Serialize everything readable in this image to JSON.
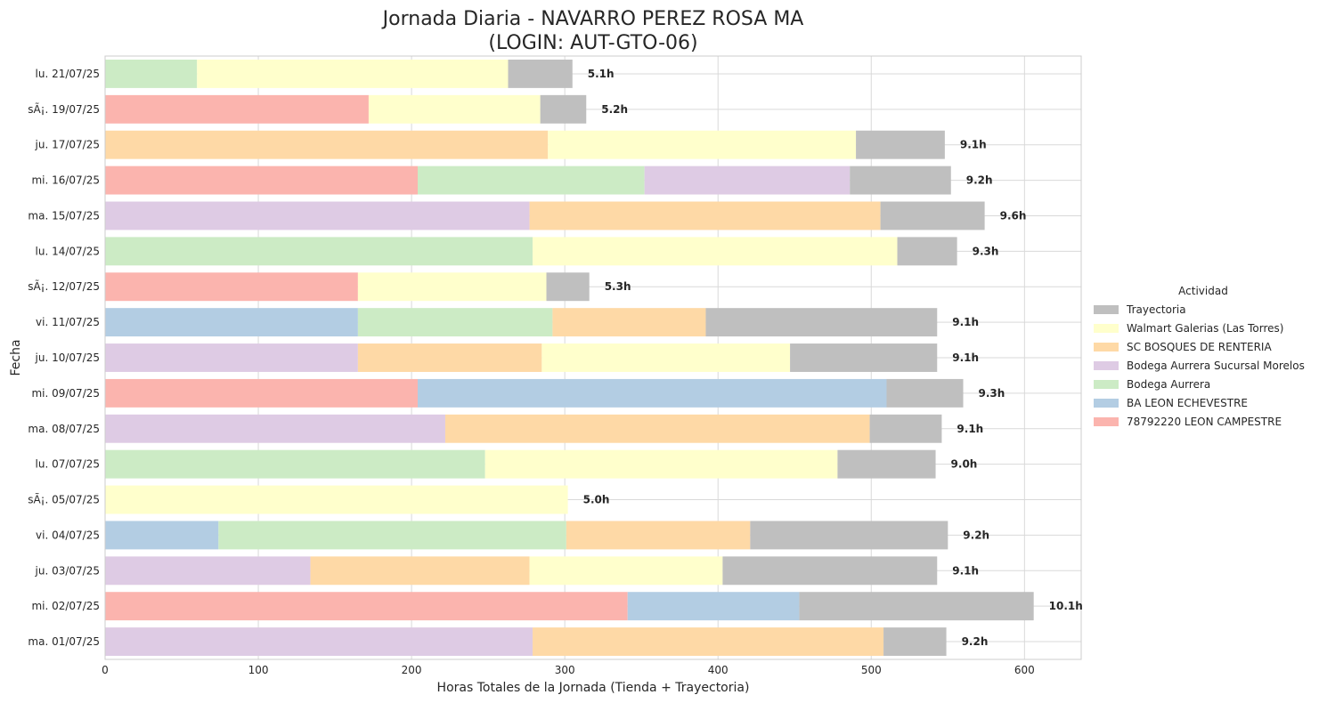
{
  "chart_data": {
    "type": "bar",
    "orientation": "horizontal",
    "stacked": true,
    "title_line1": "Jornada Diaria - NAVARRO PEREZ ROSA MA",
    "title_line2": "(LOGIN: AUT-GTO-06)",
    "xlabel": "Horas Totales de la Jornada (Tienda + Trayectoria)",
    "ylabel": "Fecha",
    "xlim": [
      0,
      637
    ],
    "xticks": [
      "0",
      "100",
      "200",
      "300",
      "400",
      "500",
      "600"
    ],
    "grid": true,
    "legend_title": "Actividad",
    "legend_position": "right",
    "series": [
      {
        "name": "78792220 LEON CAMPESTRE",
        "color": "#fbb4ae"
      },
      {
        "name": "BA LEON ECHEVESTRE",
        "color": "#b3cde3"
      },
      {
        "name": "Bodega Aurrera",
        "color": "#ccebc5"
      },
      {
        "name": "Bodega Aurrera Sucursal Morelos",
        "color": "#decbe4"
      },
      {
        "name": "SC BOSQUES DE RENTERIA",
        "color": "#fed9a6"
      },
      {
        "name": "Walmart Galerias (Las Torres)",
        "color": "#ffffcc"
      },
      {
        "name": "Trayectoria",
        "color": "#bfbfbf"
      }
    ],
    "legend_order": [
      "Trayectoria",
      "Walmart Galerias (Las Torres)",
      "SC BOSQUES DE RENTERIA",
      "Bodega Aurrera Sucursal Morelos",
      "Bodega Aurrera",
      "BA LEON ECHEVESTRE",
      "78792220 LEON CAMPESTRE"
    ],
    "rows": [
      {
        "date": "lu. 21/07/25",
        "label": "5.1h",
        "segments": [
          {
            "s": "Bodega Aurrera",
            "v": 60
          },
          {
            "s": "Walmart Galerias (Las Torres)",
            "v": 203
          },
          {
            "s": "Trayectoria",
            "v": 42
          }
        ]
      },
      {
        "date": "sÃ¡. 19/07/25",
        "label": "5.2h",
        "segments": [
          {
            "s": "78792220 LEON CAMPESTRE",
            "v": 172
          },
          {
            "s": "Walmart Galerias (Las Torres)",
            "v": 112
          },
          {
            "s": "Trayectoria",
            "v": 30
          }
        ]
      },
      {
        "date": "ju. 17/07/25",
        "label": "9.1h",
        "segments": [
          {
            "s": "SC BOSQUES DE RENTERIA",
            "v": 289
          },
          {
            "s": "Walmart Galerias (Las Torres)",
            "v": 201
          },
          {
            "s": "Trayectoria",
            "v": 58
          }
        ]
      },
      {
        "date": "mi. 16/07/25",
        "label": "9.2h",
        "segments": [
          {
            "s": "78792220 LEON CAMPESTRE",
            "v": 204
          },
          {
            "s": "Bodega Aurrera",
            "v": 148
          },
          {
            "s": "Bodega Aurrera Sucursal Morelos",
            "v": 134
          },
          {
            "s": "Trayectoria",
            "v": 66
          }
        ]
      },
      {
        "date": "ma. 15/07/25",
        "label": "9.6h",
        "segments": [
          {
            "s": "Bodega Aurrera Sucursal Morelos",
            "v": 277
          },
          {
            "s": "SC BOSQUES DE RENTERIA",
            "v": 229
          },
          {
            "s": "Trayectoria",
            "v": 68
          }
        ]
      },
      {
        "date": "lu. 14/07/25",
        "label": "9.3h",
        "segments": [
          {
            "s": "Bodega Aurrera",
            "v": 279
          },
          {
            "s": "Walmart Galerias (Las Torres)",
            "v": 238
          },
          {
            "s": "Trayectoria",
            "v": 39
          }
        ]
      },
      {
        "date": "sÃ¡. 12/07/25",
        "label": "5.3h",
        "segments": [
          {
            "s": "78792220 LEON CAMPESTRE",
            "v": 165
          },
          {
            "s": "Walmart Galerias (Las Torres)",
            "v": 123
          },
          {
            "s": "Trayectoria",
            "v": 28
          }
        ]
      },
      {
        "date": "vi. 11/07/25",
        "label": "9.1h",
        "segments": [
          {
            "s": "BA LEON ECHEVESTRE",
            "v": 165
          },
          {
            "s": "Bodega Aurrera",
            "v": 127
          },
          {
            "s": "SC BOSQUES DE RENTERIA",
            "v": 100
          },
          {
            "s": "Trayectoria",
            "v": 151
          }
        ]
      },
      {
        "date": "ju. 10/07/25",
        "label": "9.1h",
        "segments": [
          {
            "s": "Bodega Aurrera Sucursal Morelos",
            "v": 165
          },
          {
            "s": "SC BOSQUES DE RENTERIA",
            "v": 120
          },
          {
            "s": "Walmart Galerias (Las Torres)",
            "v": 162
          },
          {
            "s": "Trayectoria",
            "v": 96
          }
        ]
      },
      {
        "date": "mi. 09/07/25",
        "label": "9.3h",
        "segments": [
          {
            "s": "78792220 LEON CAMPESTRE",
            "v": 204
          },
          {
            "s": "BA LEON ECHEVESTRE",
            "v": 306
          },
          {
            "s": "Trayectoria",
            "v": 50
          }
        ]
      },
      {
        "date": "ma. 08/07/25",
        "label": "9.1h",
        "segments": [
          {
            "s": "Bodega Aurrera Sucursal Morelos",
            "v": 222
          },
          {
            "s": "SC BOSQUES DE RENTERIA",
            "v": 277
          },
          {
            "s": "Trayectoria",
            "v": 47
          }
        ]
      },
      {
        "date": "lu. 07/07/25",
        "label": "9.0h",
        "segments": [
          {
            "s": "Bodega Aurrera",
            "v": 248
          },
          {
            "s": "Walmart Galerias (Las Torres)",
            "v": 230
          },
          {
            "s": "Trayectoria",
            "v": 64
          }
        ]
      },
      {
        "date": "sÃ¡. 05/07/25",
        "label": "5.0h",
        "segments": [
          {
            "s": "Walmart Galerias (Las Torres)",
            "v": 302
          }
        ]
      },
      {
        "date": "vi. 04/07/25",
        "label": "9.2h",
        "segments": [
          {
            "s": "BA LEON ECHEVESTRE",
            "v": 74
          },
          {
            "s": "Bodega Aurrera",
            "v": 227
          },
          {
            "s": "SC BOSQUES DE RENTERIA",
            "v": 120
          },
          {
            "s": "Trayectoria",
            "v": 129
          }
        ]
      },
      {
        "date": "ju. 03/07/25",
        "label": "9.1h",
        "segments": [
          {
            "s": "Bodega Aurrera Sucursal Morelos",
            "v": 134
          },
          {
            "s": "SC BOSQUES DE RENTERIA",
            "v": 143
          },
          {
            "s": "Walmart Galerias (Las Torres)",
            "v": 126
          },
          {
            "s": "Trayectoria",
            "v": 140
          }
        ]
      },
      {
        "date": "mi. 02/07/25",
        "label": "10.1h",
        "segments": [
          {
            "s": "78792220 LEON CAMPESTRE",
            "v": 341
          },
          {
            "s": "BA LEON ECHEVESTRE",
            "v": 112
          },
          {
            "s": "Trayectoria",
            "v": 153
          }
        ]
      },
      {
        "date": "ma. 01/07/25",
        "label": "9.2h",
        "segments": [
          {
            "s": "Bodega Aurrera Sucursal Morelos",
            "v": 279
          },
          {
            "s": "SC BOSQUES DE RENTERIA",
            "v": 229
          },
          {
            "s": "Trayectoria",
            "v": 41
          }
        ]
      }
    ]
  }
}
